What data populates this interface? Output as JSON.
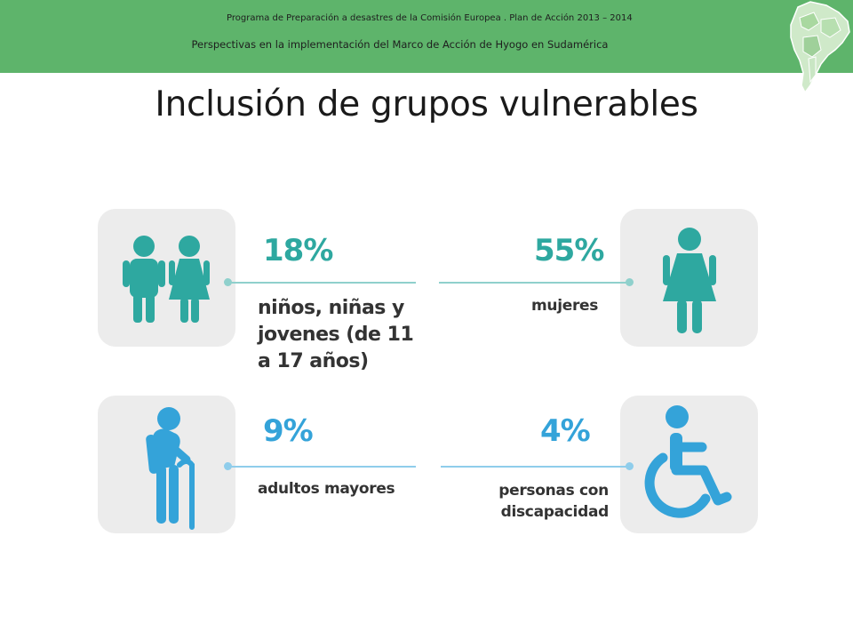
{
  "header": {
    "line1": "Programa de Preparación a desastres de la Comisión Europea . Plan de Acción 2013 – 2014",
    "line2": "Perspectivas en la implementación del Marco de Acción de Hyogo en Sudamérica"
  },
  "title": "Inclusión de grupos vulnerables",
  "colors": {
    "header_green": "#5eb46b",
    "teal": "#2ea8a0",
    "blue": "#34a3d9",
    "box_gray": "#ececec"
  },
  "groups": [
    {
      "percent": "18%",
      "label": "niños, niñas y jovenes (de 11 a 17 años)",
      "icon": "children-icon"
    },
    {
      "percent": "55%",
      "label": "mujeres",
      "icon": "woman-icon"
    },
    {
      "percent": "9%",
      "label": "adultos mayores",
      "icon": "elderly-person-icon"
    },
    {
      "percent": "4%",
      "label": "personas con discapacidad",
      "icon": "wheelchair-icon"
    }
  ]
}
